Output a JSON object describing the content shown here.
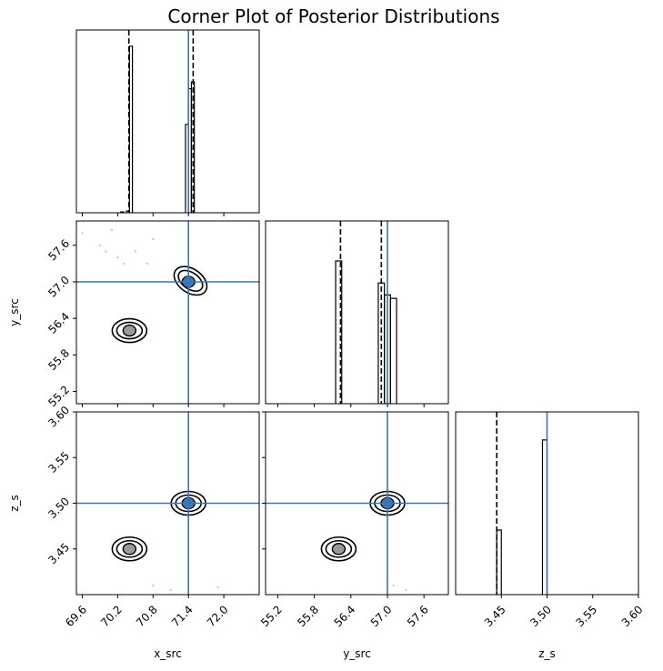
{
  "chart_data": {
    "type": "corner",
    "title": "Corner Plot of Posterior Distributions",
    "parameters": [
      {
        "name": "x_src",
        "label": "x_src",
        "range": [
          69.5,
          72.6
        ],
        "ticks": [
          69.6,
          70.2,
          70.8,
          71.4,
          72.0
        ],
        "tick_labels": [
          "69.6",
          "70.2",
          "70.8",
          "71.4",
          "72.0"
        ],
        "truth": 71.4
      },
      {
        "name": "y_src",
        "label": "y_src",
        "range": [
          55.0,
          58.0
        ],
        "ticks": [
          55.2,
          55.8,
          56.4,
          57.0,
          57.6
        ],
        "tick_labels": [
          "55.2",
          "55.8",
          "56.4",
          "57.0",
          "57.6"
        ],
        "truth": 57.0
      },
      {
        "name": "z_s",
        "label": "z_s",
        "range": [
          3.4,
          3.6
        ],
        "ticks": [
          3.45,
          3.5,
          3.55,
          3.6
        ],
        "tick_labels": [
          "3.45",
          "3.50",
          "3.55",
          "3.60"
        ],
        "truth": 3.5
      }
    ],
    "histograms": [
      {
        "param": "x_src",
        "bins": [
          [
            70.4,
            70.45,
            0.98
          ],
          [
            71.35,
            71.4,
            0.52
          ],
          [
            71.4,
            71.45,
            0.73
          ],
          [
            71.45,
            71.5,
            0.77
          ],
          [
            70.25,
            70.3,
            0.005
          ],
          [
            70.35,
            70.4,
            0.01
          ]
        ],
        "quantiles": [
          70.39,
          71.48
        ]
      },
      {
        "param": "y_src",
        "bins": [
          [
            56.15,
            56.25,
            0.84
          ],
          [
            56.85,
            56.95,
            0.71
          ],
          [
            56.95,
            57.05,
            0.64
          ],
          [
            57.05,
            57.15,
            0.62
          ]
        ],
        "quantiles": [
          56.23,
          56.9
        ]
      },
      {
        "param": "z_s",
        "bins": [
          [
            3.445,
            3.45,
            0.38
          ],
          [
            3.495,
            3.5,
            0.91
          ]
        ],
        "quantiles": [
          3.445
        ]
      }
    ],
    "modes": [
      {
        "x_src": 70.4,
        "y_src": 56.2,
        "z_s": 3.45
      },
      {
        "x_src": 71.4,
        "y_src": 57.0,
        "z_s": 3.5
      }
    ],
    "scatter": {
      "x_src__y_src": [
        [
          69.6,
          57.8
        ],
        [
          69.9,
          57.6
        ],
        [
          70.0,
          57.5
        ],
        [
          70.2,
          57.4
        ],
        [
          70.5,
          57.5
        ],
        [
          70.7,
          57.3
        ],
        [
          70.8,
          57.7
        ],
        [
          70.3,
          57.3
        ],
        [
          70.1,
          57.85
        ]
      ],
      "x_src__z_s": [
        [
          70.8,
          3.41
        ],
        [
          71.1,
          3.405
        ],
        [
          71.9,
          3.408
        ]
      ],
      "y_src__z_s": [
        [
          57.1,
          3.41
        ],
        [
          57.3,
          3.405
        ]
      ]
    },
    "truth_color": "#3a75b5",
    "quantile_style": "dashed",
    "grid": false,
    "legend": "none"
  }
}
